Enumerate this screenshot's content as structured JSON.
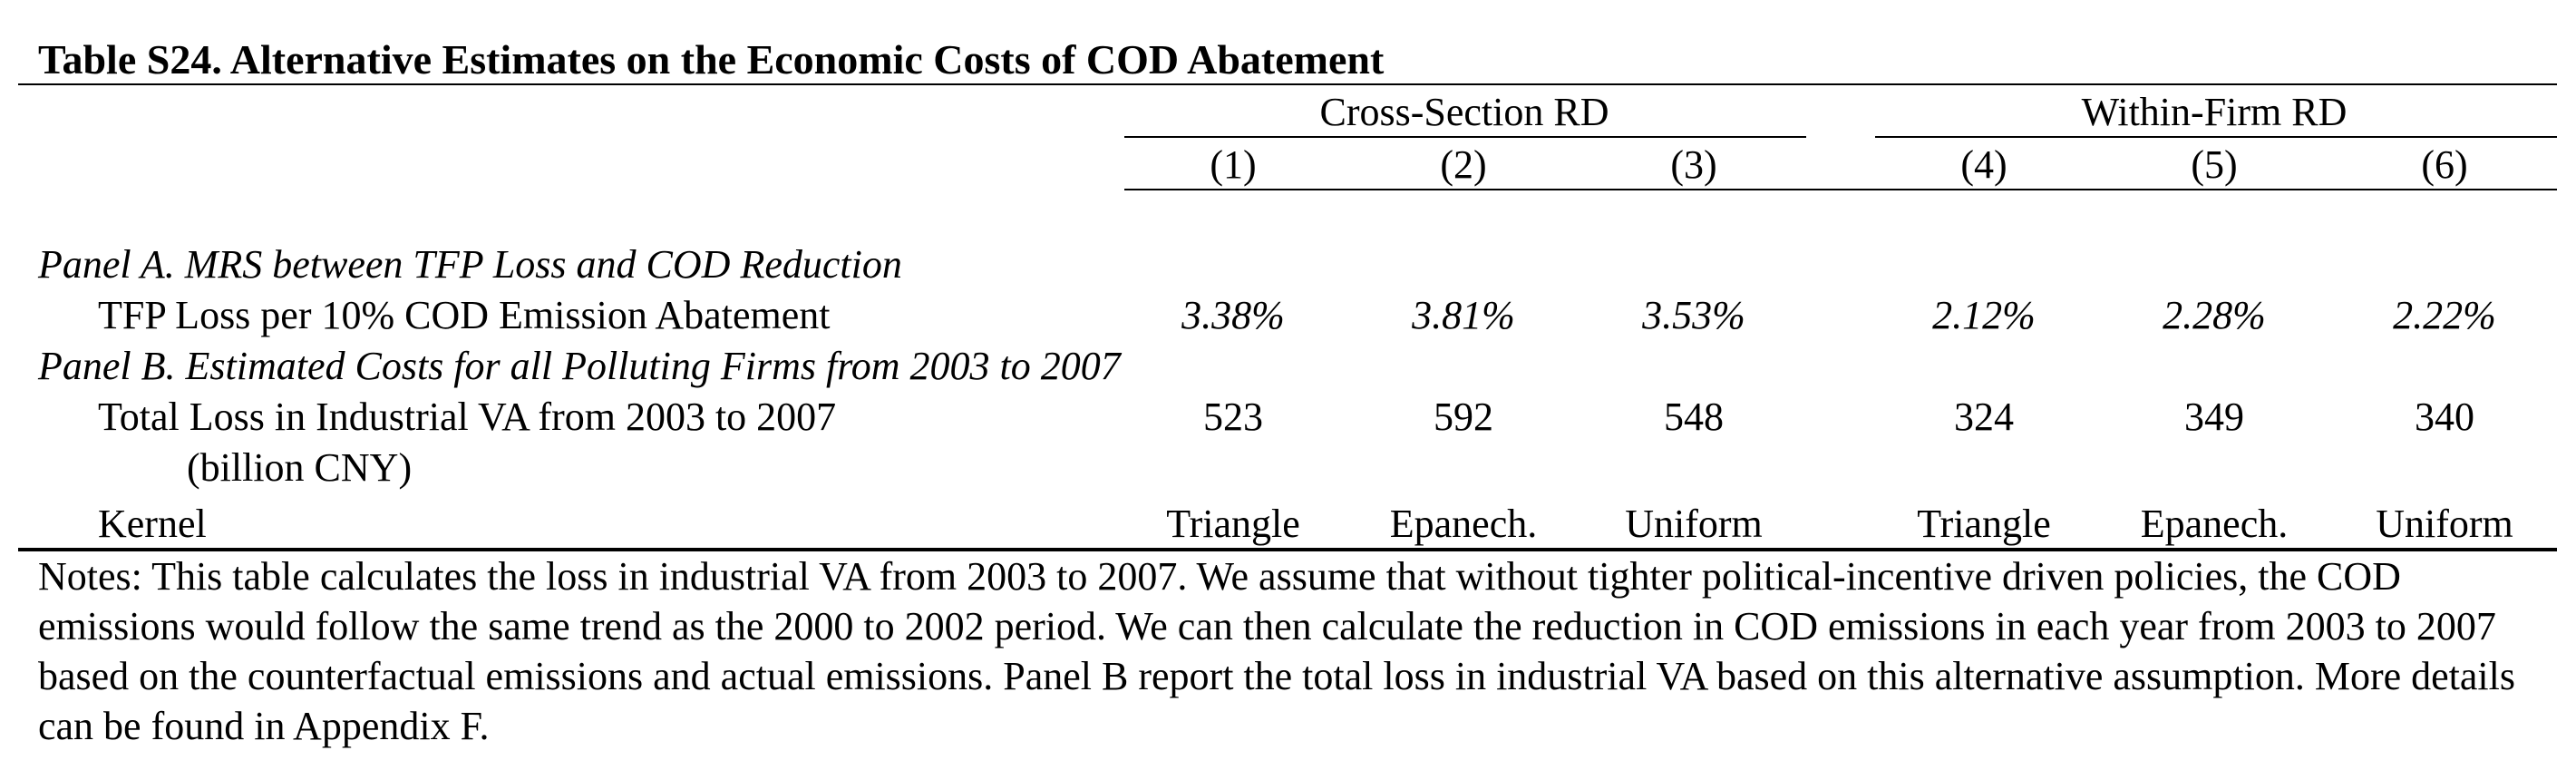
{
  "table": {
    "title": "Table S24. Alternative Estimates on the Economic Costs of COD Abatement",
    "groups": [
      "Cross-Section RD",
      "Within-Firm RD"
    ],
    "columns": [
      "(1)",
      "(2)",
      "(3)",
      "(4)",
      "(5)",
      "(6)"
    ],
    "panel_a": {
      "heading": "Panel A. MRS between TFP Loss and COD Reduction",
      "row_label": "TFP Loss per 10% COD Emission Abatement",
      "values": [
        "3.38%",
        "3.81%",
        "3.53%",
        "2.12%",
        "2.28%",
        "2.22%"
      ]
    },
    "panel_b": {
      "heading": "Panel B. Estimated Costs for all Polluting Firms from 2003 to 2007",
      "row_label": "Total Loss in Industrial VA from 2003 to 2007",
      "row_label_cont": "(billion CNY)",
      "values": [
        "523",
        "592",
        "548",
        "324",
        "349",
        "340"
      ]
    },
    "kernel": {
      "label": "Kernel",
      "values": [
        "Triangle",
        "Epanech.",
        "Uniform",
        "Triangle",
        "Epanech.",
        "Uniform"
      ]
    },
    "notes": "Notes:  This table calculates the loss in industrial VA from 2003 to 2007. We assume that without tighter political-incentive driven policies, the COD emissions would follow the same trend as the 2000 to 2002 period. We can then calculate the reduction in COD emissions in each year from 2003 to 2007 based on the counterfactual emissions and actual emissions. Panel B report the total loss in industrial VA based on this alternative assumption. More details can be found in Appendix F."
  }
}
